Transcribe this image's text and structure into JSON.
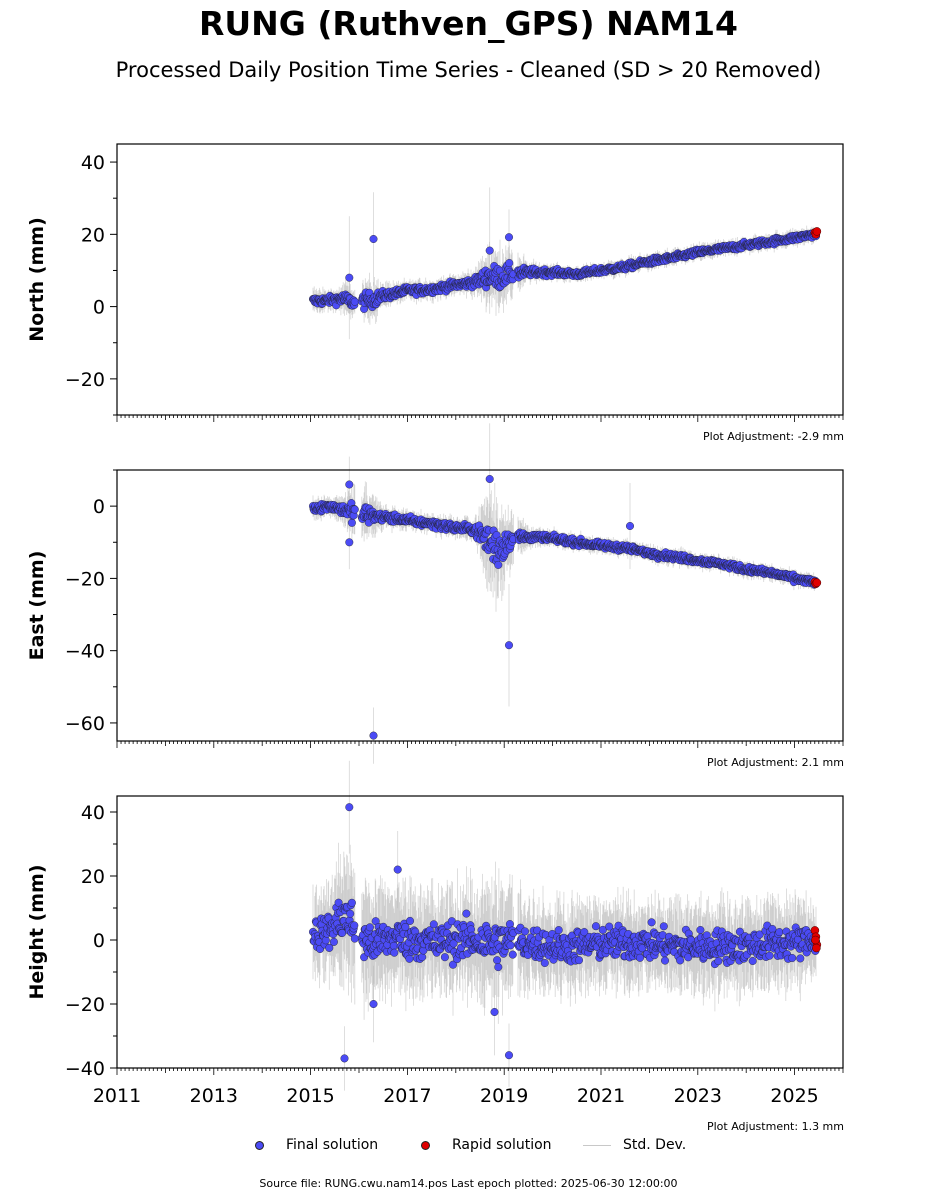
{
  "title": "RUNG (Ruthven_GPS) NAM14",
  "subtitle": "Processed Daily Position Time Series - Cleaned (SD > 20 Removed)",
  "footer": "Source file: RUNG.cwu.nam14.pos  Last epoch plotted: 2025-06-30 12:00:00",
  "legend": {
    "final": "Final solution",
    "rapid": "Rapid solution",
    "std": "Std. Dev."
  },
  "colors": {
    "final": "#4b4bf5",
    "rapid": "#e00000",
    "std": "#b4b4b4"
  },
  "chart_data": [
    {
      "type": "scatter",
      "ylabel": "North (mm)",
      "adjustment": "Plot Adjustment: -2.9 mm",
      "xlim": [
        2011,
        2026
      ],
      "ylim": [
        -30,
        45
      ],
      "yticks": [
        -20,
        0,
        20,
        40
      ],
      "series": [
        {
          "name": "Final solution",
          "x": [
            2015.1,
            2015.4,
            2015.7,
            2015.9,
            2016.1,
            2016.3,
            2016.5,
            2016.8,
            2017.0,
            2017.3,
            2017.6,
            2018.0,
            2018.4,
            2018.7,
            2018.9,
            2019.1,
            2019.5,
            2020.0,
            2020.5,
            2021.0,
            2021.5,
            2022.0,
            2022.5,
            2023.0,
            2023.5,
            2024.0,
            2024.5,
            2025.0,
            2025.4
          ],
          "y": [
            1.5,
            1.8,
            2.2,
            1.0,
            1.5,
            2.0,
            3.0,
            3.8,
            4.5,
            4.5,
            5.0,
            6.0,
            6.8,
            8.5,
            8.0,
            9.0,
            9.5,
            9.5,
            9.0,
            10.0,
            11.0,
            12.5,
            13.5,
            15.0,
            16.0,
            17.0,
            18.0,
            19.0,
            20.0
          ],
          "spread": [
            1.2,
            1.0,
            1.5,
            1.5,
            2.0,
            2.0,
            1.2,
            1.0,
            1.0,
            1.0,
            1.0,
            1.0,
            1.2,
            3.0,
            3.0,
            2.5,
            1.0,
            0.8,
            0.8,
            0.8,
            0.8,
            0.8,
            0.8,
            0.8,
            0.8,
            0.8,
            0.8,
            0.8,
            0.8
          ]
        },
        {
          "name": "Rapid solution",
          "x": [
            2025.42,
            2025.44,
            2025.46
          ],
          "y": [
            20.5,
            20.0,
            20.8
          ]
        }
      ],
      "outliers": [
        [
          2016.3,
          18.7
        ],
        [
          2019.1,
          19.2
        ],
        [
          2015.8,
          8.0
        ],
        [
          2018.7,
          15.5
        ]
      ]
    },
    {
      "type": "scatter",
      "ylabel": "East (mm)",
      "adjustment": "Plot Adjustment: 2.1 mm",
      "xlim": [
        2011,
        2026
      ],
      "ylim": [
        -65,
        10
      ],
      "yticks": [
        -60,
        -40,
        -20,
        0
      ],
      "series": [
        {
          "name": "Final solution",
          "x": [
            2015.1,
            2015.4,
            2015.7,
            2015.9,
            2016.1,
            2016.3,
            2016.5,
            2016.8,
            2017.0,
            2017.3,
            2017.6,
            2018.0,
            2018.4,
            2018.7,
            2018.9,
            2019.1,
            2019.5,
            2020.0,
            2020.5,
            2021.0,
            2021.5,
            2022.0,
            2022.5,
            2023.0,
            2023.5,
            2024.0,
            2024.5,
            2025.0,
            2025.4
          ],
          "y": [
            -0.5,
            0.0,
            -1.0,
            -2.0,
            -2.5,
            -2.5,
            -3.0,
            -3.5,
            -4.0,
            -4.5,
            -5.0,
            -6.0,
            -6.5,
            -10.0,
            -12.0,
            -9.0,
            -8.5,
            -9.0,
            -10.0,
            -11.0,
            -11.5,
            -13.0,
            -14.0,
            -15.0,
            -16.0,
            -17.5,
            -18.5,
            -20.0,
            -21.0
          ],
          "spread": [
            1.0,
            1.0,
            1.5,
            2.5,
            2.5,
            2.0,
            1.2,
            1.0,
            1.0,
            1.0,
            1.0,
            1.0,
            1.2,
            5.0,
            5.0,
            3.0,
            1.0,
            0.8,
            0.8,
            0.8,
            0.8,
            0.8,
            0.8,
            0.8,
            0.8,
            0.8,
            0.8,
            0.8,
            0.8
          ]
        },
        {
          "name": "Rapid solution",
          "x": [
            2025.42,
            2025.44,
            2025.46
          ],
          "y": [
            -21.0,
            -21.5,
            -21.2
          ]
        }
      ],
      "outliers": [
        [
          2016.3,
          -63.5
        ],
        [
          2019.1,
          -38.5
        ],
        [
          2015.8,
          6.0
        ],
        [
          2018.7,
          7.5
        ],
        [
          2015.8,
          -10.0
        ],
        [
          2021.6,
          -5.5
        ]
      ]
    },
    {
      "type": "scatter",
      "ylabel": "Height (mm)",
      "adjustment": "Plot Adjustment: 1.3 mm",
      "xlim": [
        2011,
        2026
      ],
      "ylim": [
        -40,
        45
      ],
      "yticks": [
        -40,
        -20,
        0,
        20,
        40
      ],
      "xticks": [
        "2011",
        "2013",
        "2015",
        "2017",
        "2019",
        "2021",
        "2023",
        "2025"
      ],
      "series": [
        {
          "name": "Final solution",
          "x": [
            2015.1,
            2015.4,
            2015.7,
            2015.9,
            2016.1,
            2016.3,
            2016.5,
            2016.8,
            2017.0,
            2017.3,
            2017.6,
            2018.0,
            2018.4,
            2018.7,
            2018.9,
            2019.1,
            2019.5,
            2020.0,
            2020.5,
            2021.0,
            2021.5,
            2022.0,
            2022.5,
            2023.0,
            2023.5,
            2024.0,
            2024.5,
            2025.0,
            2025.4
          ],
          "y": [
            2.0,
            3.0,
            8.0,
            4.0,
            0.0,
            -1.0,
            0.0,
            1.0,
            0.0,
            0.0,
            -1.0,
            0.0,
            0.0,
            -1.0,
            -1.0,
            0.0,
            -1.0,
            -2.0,
            -2.0,
            -1.0,
            -1.0,
            -1.0,
            -2.0,
            -2.0,
            -2.0,
            -2.0,
            -1.0,
            -1.0,
            0.0
          ],
          "spread": [
            5,
            5,
            8,
            7,
            7,
            6,
            6,
            6,
            6,
            6,
            6,
            6,
            6,
            7,
            7,
            6,
            5,
            5,
            5,
            5,
            5,
            5,
            5,
            5,
            5,
            5,
            5,
            5,
            4
          ]
        },
        {
          "name": "Rapid solution",
          "x": [
            2025.42,
            2025.44,
            2025.46,
            2025.45,
            2025.43
          ],
          "y": [
            3.0,
            1.0,
            -1.5,
            -2.5,
            0.0
          ]
        }
      ],
      "outliers": [
        [
          2015.8,
          41.5
        ],
        [
          2015.7,
          -37.0
        ],
        [
          2019.1,
          -36.0
        ],
        [
          2016.8,
          22.0
        ],
        [
          2018.8,
          -22.5
        ],
        [
          2016.3,
          -20.0
        ]
      ]
    }
  ]
}
